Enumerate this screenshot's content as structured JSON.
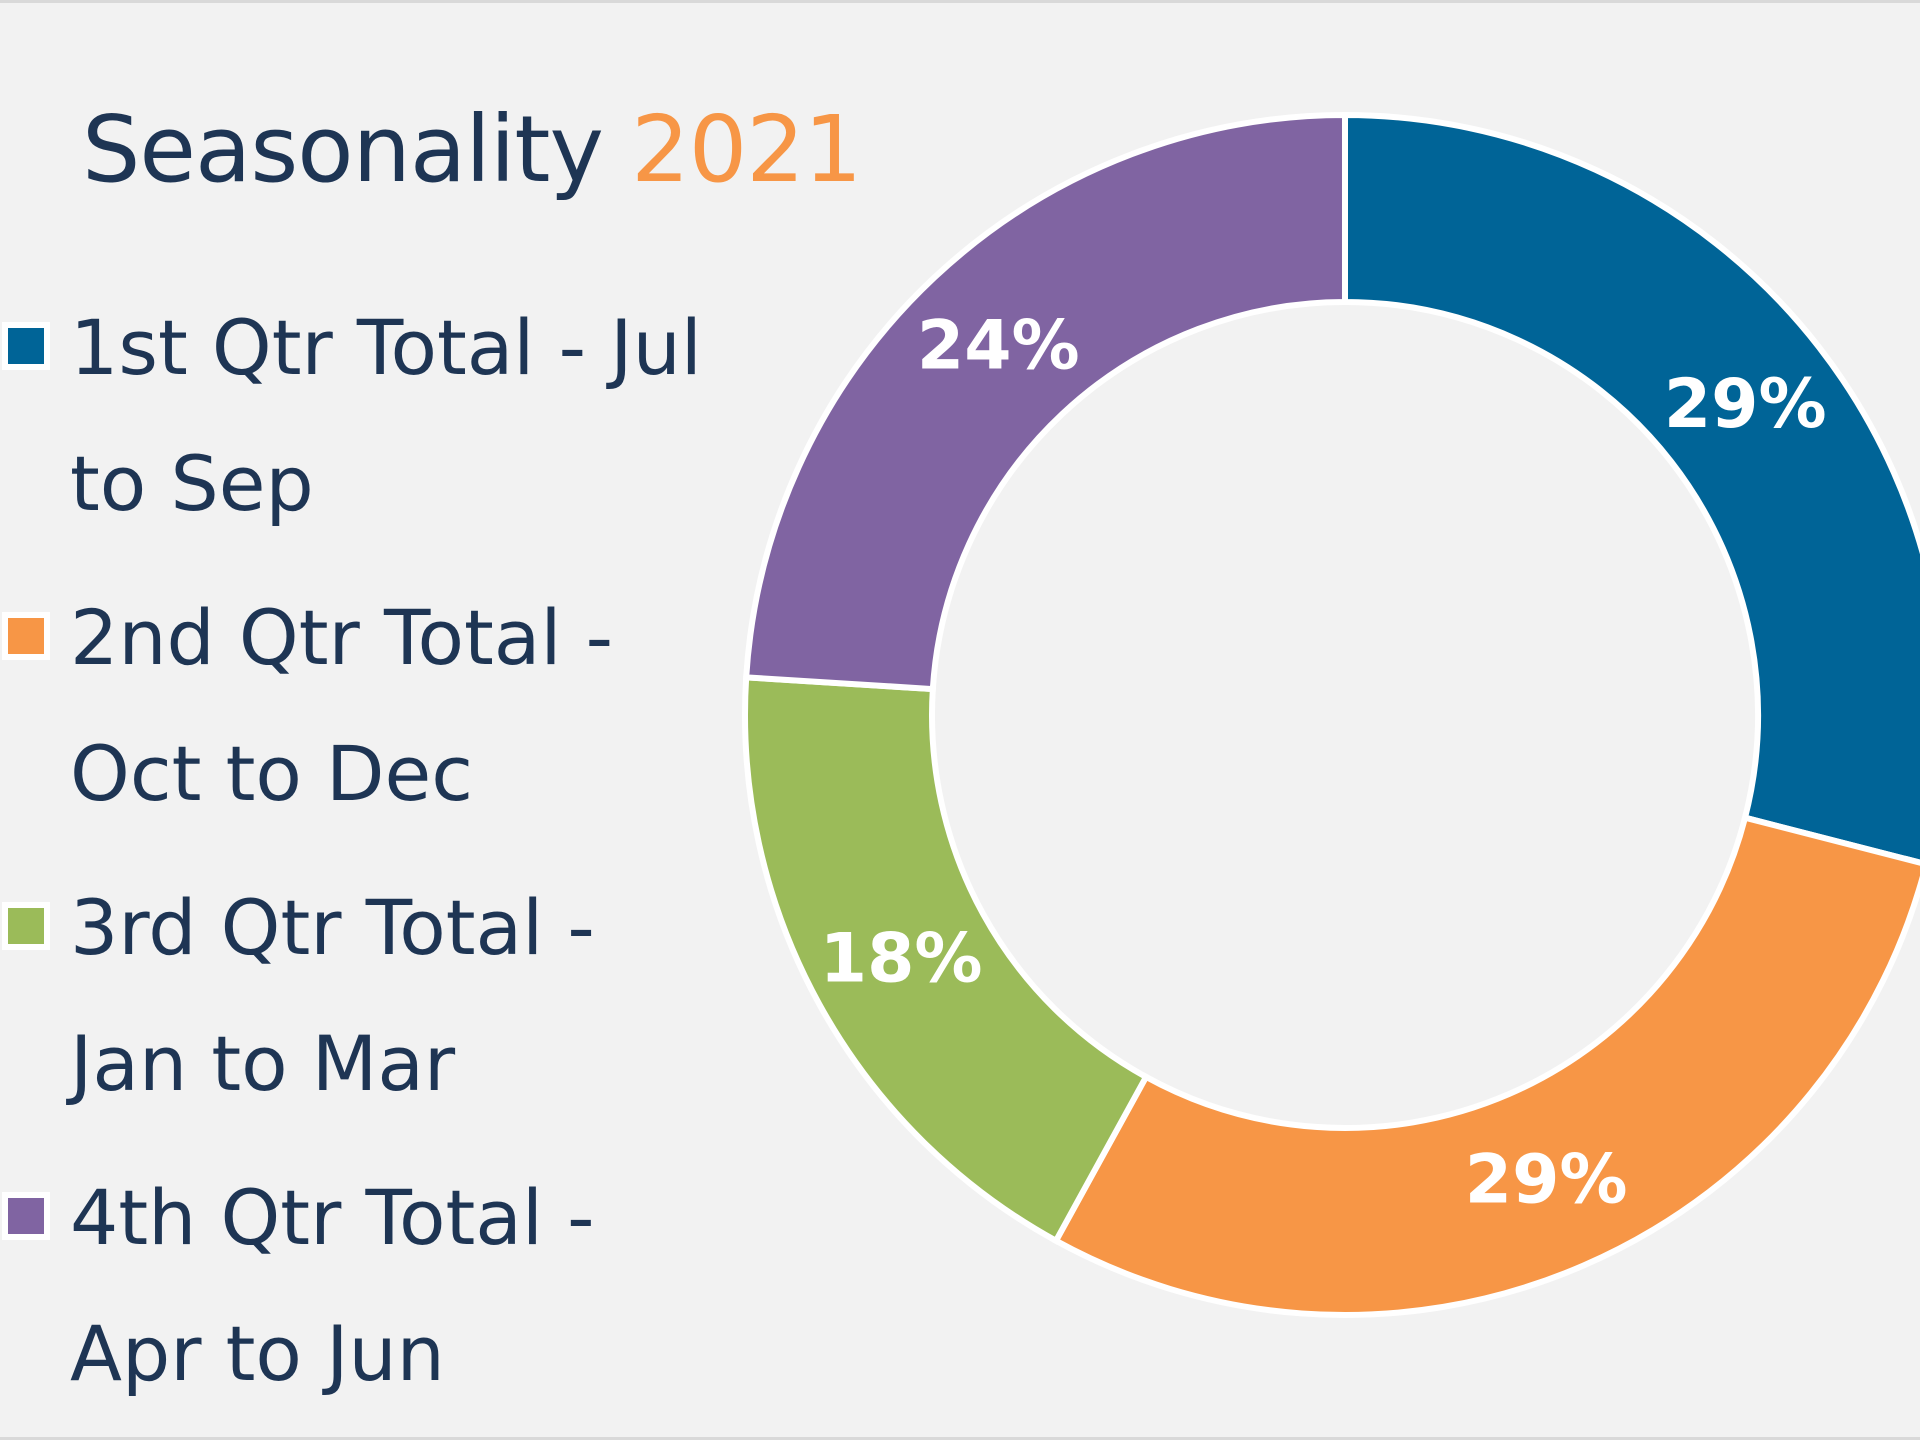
{
  "chart_data": {
    "type": "pie",
    "variant": "donut",
    "title": "Seasonality",
    "title_highlight": "2021",
    "legend_position": "left",
    "categories": [
      "1st Qtr Total - Jul to Sep",
      "2nd Qtr Total - Oct to Dec",
      "3rd Qtr Total - Jan to Mar",
      "4th Qtr Total - Apr to Jun"
    ],
    "values": [
      29,
      29,
      18,
      24
    ],
    "labels": [
      "29%",
      "29%",
      "18%",
      "24%"
    ],
    "colors": [
      "#006497",
      "#f79646",
      "#9bbb59",
      "#8064a2"
    ]
  },
  "title_color": "#1e3554",
  "highlight_color": "#f79646",
  "background": "#f2f2f2"
}
